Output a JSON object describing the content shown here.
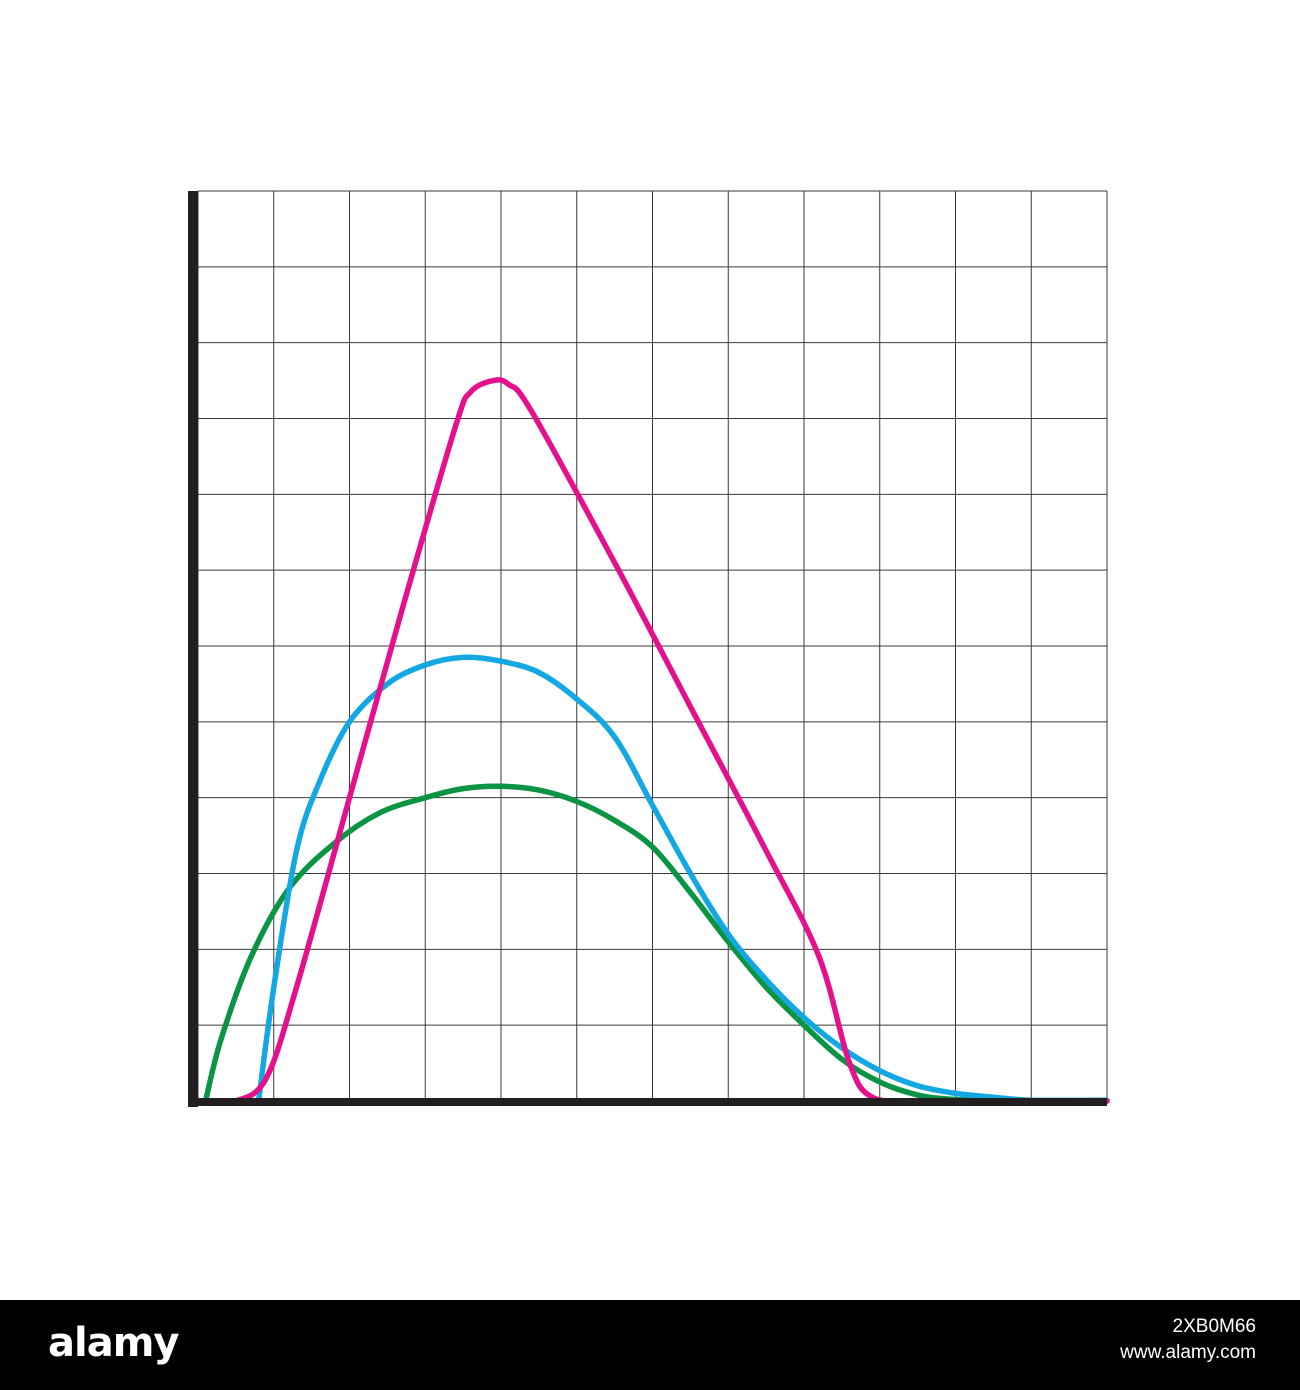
{
  "chart_data": {
    "type": "line",
    "title": "",
    "xlabel": "",
    "ylabel": "",
    "xlim": [
      0,
      12
    ],
    "ylim": [
      0,
      12
    ],
    "grid": true,
    "legend": "none",
    "series": [
      {
        "color": "#E5118C",
        "points": [
          [
            0.1,
            0
          ],
          [
            0.5,
            0
          ],
          [
            0.9,
            0.3
          ],
          [
            1.3,
            1.5
          ],
          [
            2.0,
            4.0
          ],
          [
            2.7,
            6.5
          ],
          [
            3.4,
            8.9
          ],
          [
            3.6,
            9.35
          ],
          [
            3.9,
            9.5
          ],
          [
            4.1,
            9.45
          ],
          [
            4.4,
            9.1
          ],
          [
            5.5,
            7.1
          ],
          [
            6.5,
            5.2
          ],
          [
            7.5,
            3.3
          ],
          [
            8.2,
            1.9
          ],
          [
            8.6,
            0.5
          ],
          [
            8.9,
            0.05
          ],
          [
            9.5,
            0
          ],
          [
            10.5,
            0
          ],
          [
            12,
            0
          ]
        ]
      },
      {
        "color": "#14A8E2",
        "points": [
          [
            0.8,
            0
          ],
          [
            1.0,
            1.5
          ],
          [
            1.3,
            3.3
          ],
          [
            1.6,
            4.2
          ],
          [
            2.0,
            5.0
          ],
          [
            2.5,
            5.5
          ],
          [
            3.0,
            5.75
          ],
          [
            3.5,
            5.85
          ],
          [
            4.0,
            5.8
          ],
          [
            4.5,
            5.65
          ],
          [
            5.0,
            5.3
          ],
          [
            5.5,
            4.8
          ],
          [
            6.0,
            3.9
          ],
          [
            6.5,
            3.0
          ],
          [
            7.0,
            2.2
          ],
          [
            7.5,
            1.6
          ],
          [
            8.0,
            1.1
          ],
          [
            8.5,
            0.7
          ],
          [
            9.0,
            0.4
          ],
          [
            9.5,
            0.2
          ],
          [
            10.0,
            0.1
          ],
          [
            10.5,
            0.05
          ],
          [
            11.0,
            0.01
          ],
          [
            12.0,
            0.01
          ]
        ]
      },
      {
        "color": "#0A9444",
        "points": [
          [
            0.1,
            0
          ],
          [
            0.3,
            0.8
          ],
          [
            0.7,
            1.9
          ],
          [
            1.2,
            2.8
          ],
          [
            1.8,
            3.4
          ],
          [
            2.4,
            3.8
          ],
          [
            3.0,
            4.0
          ],
          [
            3.5,
            4.12
          ],
          [
            4.0,
            4.15
          ],
          [
            4.5,
            4.1
          ],
          [
            5.0,
            3.95
          ],
          [
            5.5,
            3.7
          ],
          [
            6.0,
            3.35
          ],
          [
            6.5,
            2.75
          ],
          [
            7.0,
            2.1
          ],
          [
            7.5,
            1.5
          ],
          [
            8.0,
            1.0
          ],
          [
            8.5,
            0.55
          ],
          [
            9.0,
            0.25
          ],
          [
            9.5,
            0.08
          ],
          [
            10.0,
            0.02
          ],
          [
            11.0,
            0
          ],
          [
            12.0,
            0
          ]
        ]
      }
    ]
  },
  "footer": {
    "logo_text": "alamy",
    "image_id": "2XB0M66",
    "site": "www.alamy.com"
  }
}
